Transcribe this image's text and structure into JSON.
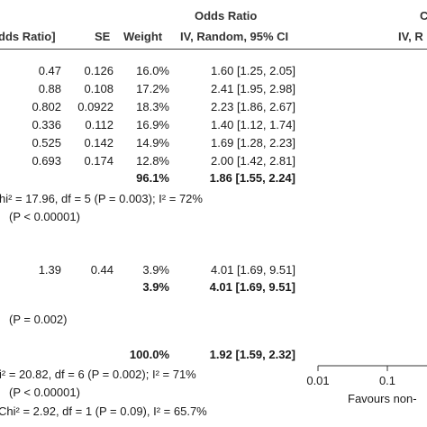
{
  "chart_data": {
    "type": "table",
    "header": {
      "group_title": "Odds Ratio",
      "group_title_right": "C",
      "col_log_or": "dds Ratio]",
      "col_se": "SE",
      "col_weight": "Weight",
      "col_ci": "IV, Random, 95% CI",
      "col_ci_right": "IV, R"
    },
    "subgroup1": {
      "rows": [
        {
          "logor": "0.47",
          "se": "0.126",
          "weight": "16.0%",
          "ci": "1.60 [1.25, 2.05]"
        },
        {
          "logor": "0.88",
          "se": "0.108",
          "weight": "17.2%",
          "ci": "2.41 [1.95, 2.98]"
        },
        {
          "logor": "0.802",
          "se": "0.0922",
          "weight": "18.3%",
          "ci": "2.23 [1.86, 2.67]"
        },
        {
          "logor": "0.336",
          "se": "0.112",
          "weight": "16.9%",
          "ci": "1.40 [1.12, 1.74]"
        },
        {
          "logor": "0.525",
          "se": "0.142",
          "weight": "14.9%",
          "ci": "1.69 [1.28, 2.23]"
        },
        {
          "logor": "0.693",
          "se": "0.174",
          "weight": "12.8%",
          "ci": "2.00 [1.42, 2.81]"
        }
      ],
      "subtotal_weight": "96.1%",
      "subtotal_ci": "1.86 [1.55, 2.24]",
      "heterogeneity": "hi² = 17.96, df = 5 (P = 0.003); I² = 72%",
      "overall_test": "(P < 0.00001)"
    },
    "subgroup2": {
      "rows": [
        {
          "logor": "1.39",
          "se": "0.44",
          "weight": "3.9%",
          "ci": "4.01 [1.69, 9.51]"
        }
      ],
      "subtotal_weight": "3.9%",
      "subtotal_ci": "4.01 [1.69, 9.51]",
      "overall_test": "(P = 0.002)"
    },
    "total": {
      "weight": "100.0%",
      "ci": "1.92 [1.59, 2.32]",
      "heterogeneity": "i² = 20.82, df = 6 (P = 0.002); I² = 71%",
      "overall_test": "(P < 0.00001)",
      "subgroup_diff": "Chi² = 2.92, df = 1 (P = 0.09), I² = 65.7%"
    },
    "axis": {
      "ticks": [
        "0.01",
        "0.1"
      ],
      "tick_values": [
        0.01,
        0.1
      ],
      "scale": "log",
      "favours_left": "Favours non-"
    }
  }
}
